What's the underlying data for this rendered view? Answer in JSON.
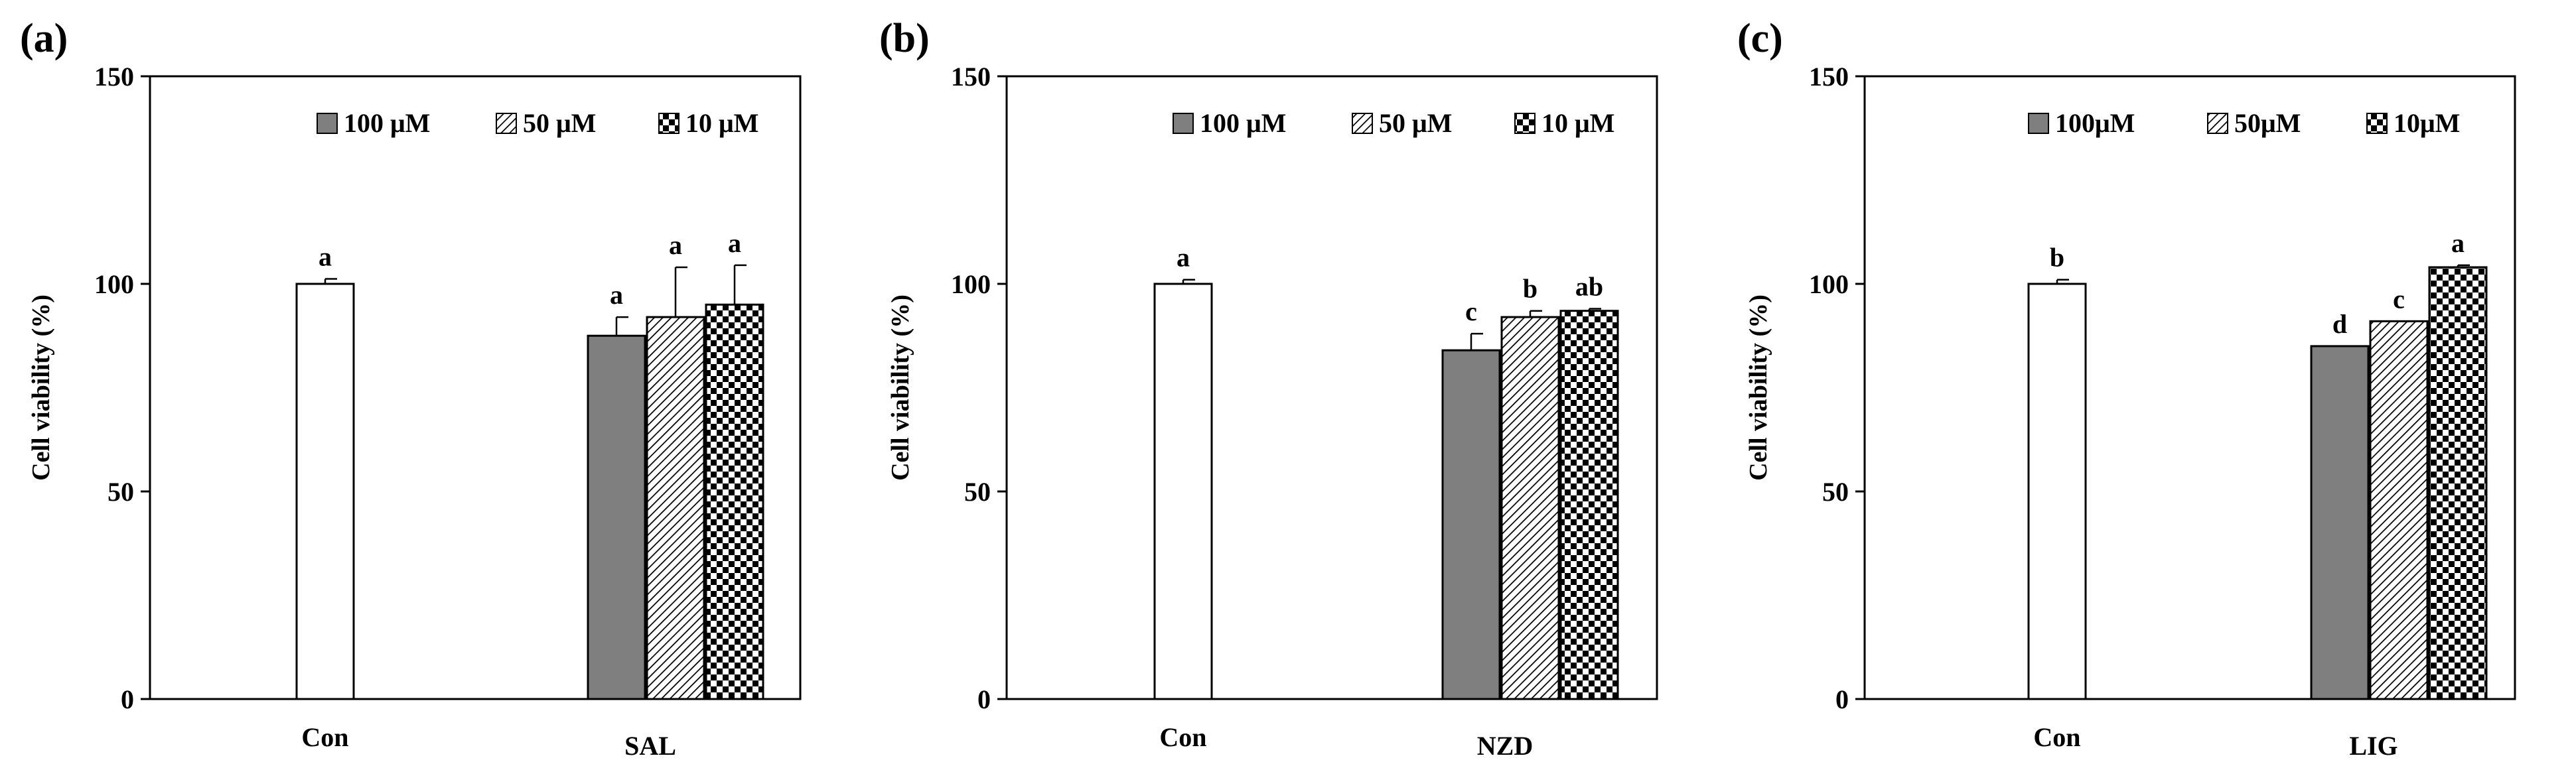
{
  "chart_data": [
    {
      "type": "bar",
      "panel_label": "(a)",
      "ylabel": "Cell viability (%)",
      "ylim": [
        0,
        150
      ],
      "yticks": [
        "0",
        "50",
        "100",
        "150"
      ],
      "categories": [
        "Con",
        "SAL"
      ],
      "control": {
        "name": "Con",
        "value": 100,
        "error": 1.2,
        "letter": "a"
      },
      "legend": [
        "100 μM",
        "50 μM",
        "10 μM"
      ],
      "series": [
        {
          "name": "100 μM",
          "value": 87.5,
          "error": 4.5,
          "letter": "a"
        },
        {
          "name": "50 μM",
          "value": 92,
          "error": 12,
          "letter": "a"
        },
        {
          "name": "10 μM",
          "value": 95,
          "error": 9.5,
          "letter": "a"
        }
      ]
    },
    {
      "type": "bar",
      "panel_label": "(b)",
      "ylabel": "Cell viability (%)",
      "ylim": [
        0,
        150
      ],
      "yticks": [
        "0",
        "50",
        "100",
        "150"
      ],
      "categories": [
        "Con",
        "NZD"
      ],
      "control": {
        "name": "Con",
        "value": 100,
        "error": 1,
        "letter": "a"
      },
      "legend": [
        "100 μM",
        "50 μM",
        "10 μM"
      ],
      "series": [
        {
          "name": "100 μM",
          "value": 84,
          "error": 4,
          "letter": "c"
        },
        {
          "name": "50 μM",
          "value": 92,
          "error": 1.5,
          "letter": "b"
        },
        {
          "name": "10 μM",
          "value": 93.5,
          "error": 0.5,
          "letter": "ab"
        }
      ]
    },
    {
      "type": "bar",
      "panel_label": "(c)",
      "ylabel": "Cell viability (%)",
      "ylim": [
        0,
        150
      ],
      "yticks": [
        "0",
        "50",
        "100",
        "150"
      ],
      "categories": [
        "Con",
        "LIG"
      ],
      "control": {
        "name": "Con",
        "value": 100,
        "error": 1,
        "letter": "b"
      },
      "legend": [
        "100μM",
        "50μM",
        "10μM"
      ],
      "series": [
        {
          "name": "100μM",
          "value": 85,
          "error": 0,
          "letter": "d"
        },
        {
          "name": "50μM",
          "value": 91,
          "error": 0,
          "letter": "c"
        },
        {
          "name": "10μM",
          "value": 104,
          "error": 0.5,
          "letter": "a"
        }
      ]
    }
  ],
  "colors": {
    "solid_bar": "#7f7f7f",
    "outline": "#000000",
    "control_fill": "#ffffff"
  }
}
